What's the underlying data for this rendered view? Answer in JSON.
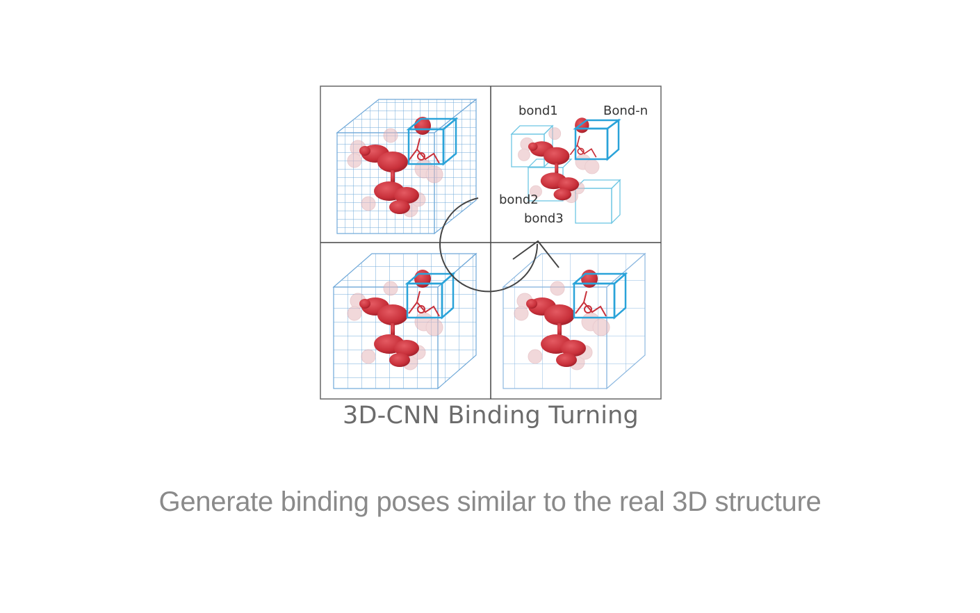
{
  "figure": {
    "caption": "3D-CNN Binding Turning",
    "labels": {
      "bond1": "bond1",
      "bond_n": "Bond-n",
      "bond2": "bond2",
      "bond3": "bond3"
    },
    "colors": {
      "grid": "#6fa8d8",
      "cube_highlight": "#2aa3d9",
      "molecule": "#c8303a",
      "molecule_halo": "#e7b9bd",
      "frame": "#666666"
    }
  },
  "subtitle": "Generate binding poses similar to the real 3D structure"
}
